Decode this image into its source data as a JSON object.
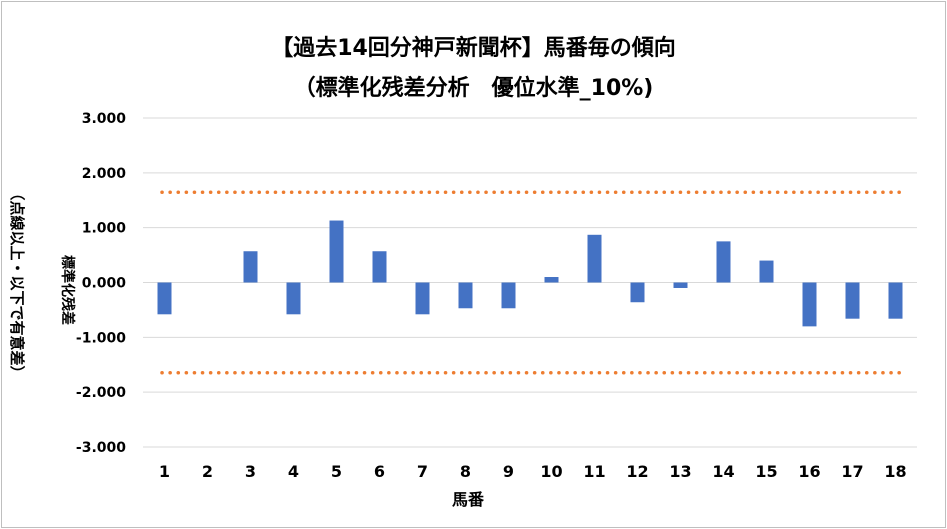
{
  "chart_data": {
    "type": "bar",
    "title": "【過去14回分神戸新聞杯】馬番毎の傾向",
    "subtitle": "（標準化残差分析　優位水準_10%)",
    "xlabel": "馬番",
    "ylabel_main": "標準化残差",
    "ylabel_note": "（点線以上・以下で有意差）",
    "categories": [
      "1",
      "2",
      "3",
      "4",
      "5",
      "6",
      "7",
      "8",
      "9",
      "10",
      "11",
      "12",
      "13",
      "14",
      "15",
      "16",
      "17",
      "18"
    ],
    "values": [
      -0.58,
      0.0,
      0.57,
      -0.58,
      1.13,
      0.57,
      -0.58,
      -0.47,
      -0.47,
      0.1,
      0.87,
      -0.36,
      -0.1,
      0.75,
      0.4,
      -0.8,
      -0.66,
      -0.66
    ],
    "ylim": [
      -3,
      3
    ],
    "yticks": [
      "3.000",
      "2.000",
      "1.000",
      "0.000",
      "-1.000",
      "-2.000",
      "-3.000"
    ],
    "ytick_values": [
      3,
      2,
      1,
      0,
      -1,
      -2,
      -3
    ],
    "thresholds": [
      1.645,
      -1.645
    ],
    "bar_color": "#4472c4",
    "threshold_color": "#ed7d31",
    "grid": true
  }
}
